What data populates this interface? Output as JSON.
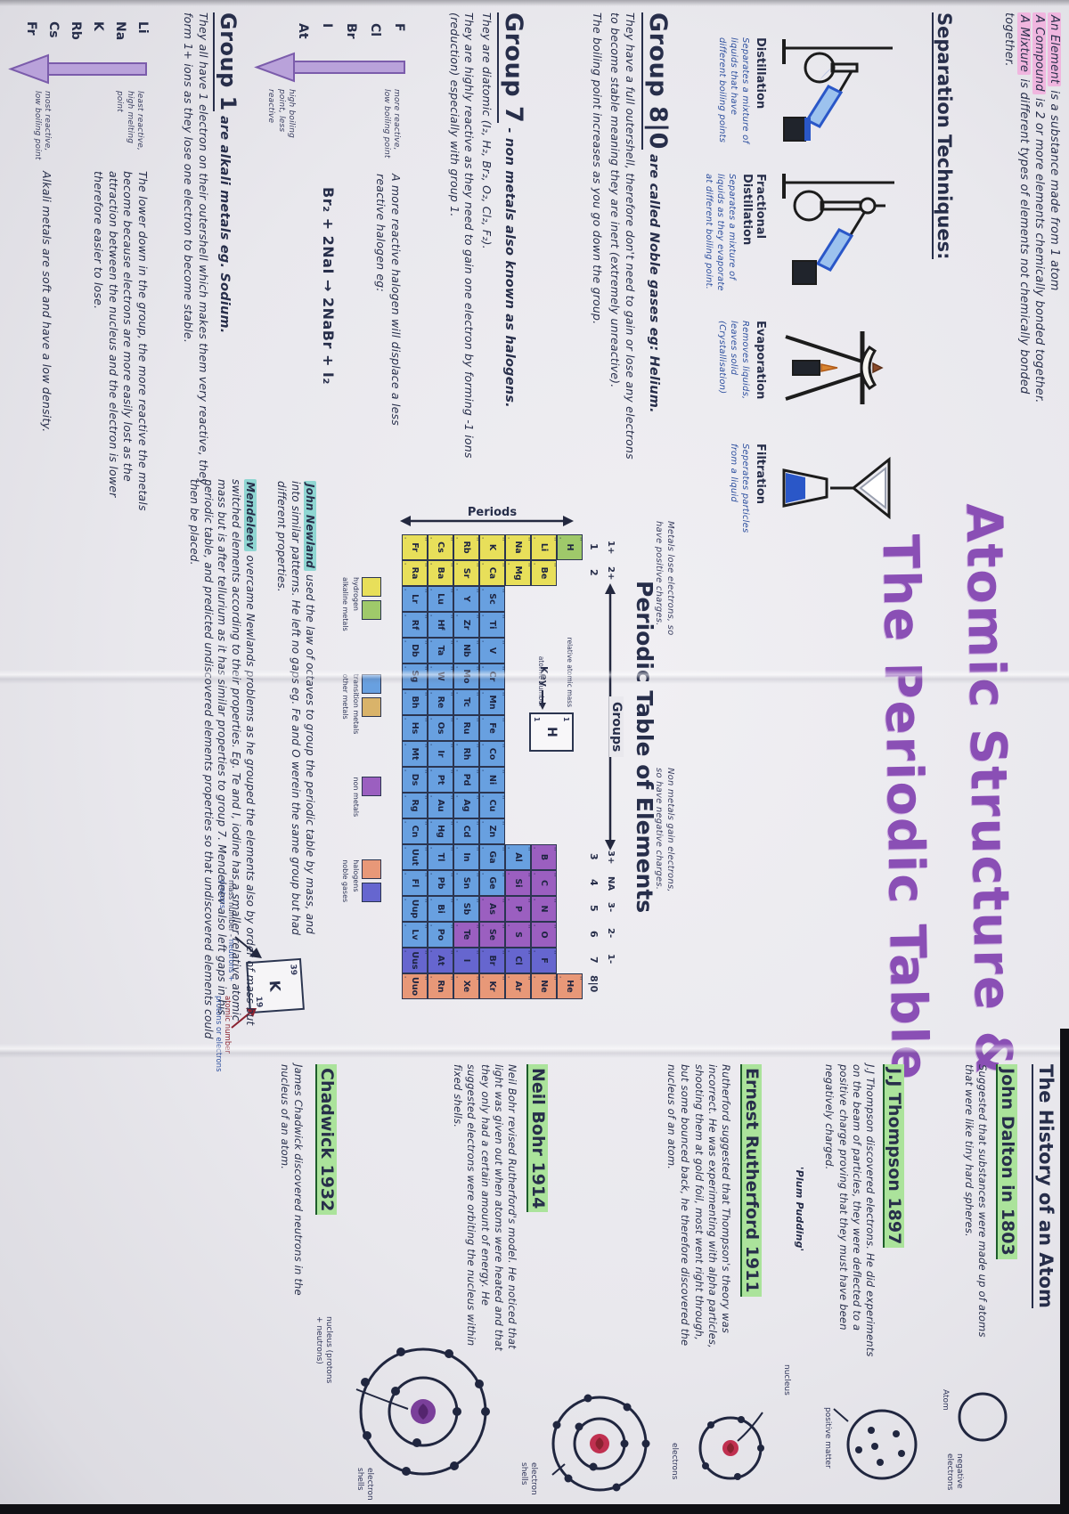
{
  "defs": [
    {
      "hl": "An Element",
      "rest": " is a substance made from 1 atom"
    },
    {
      "hl": "A Compound",
      "rest": " is 2 or more elements chemically bonded together."
    },
    {
      "hl": "A Mixture",
      "rest": " is different types of elements not chemically bonded together."
    }
  ],
  "separation": {
    "heading": "Separation Techniques:",
    "techniques": [
      {
        "name": "Distillation",
        "desc": "Separates a mixture of liquids that have different boiling points"
      },
      {
        "name": "Fractional Distillation",
        "desc": "Separates a mixture of liquids as they evaporate at different boiling point."
      },
      {
        "name": "Evaporation",
        "desc": "Removes liquids, leaves solid (Crystallisation)"
      },
      {
        "name": "Filtration",
        "desc": "Seperates particles from a liquid"
      }
    ]
  },
  "group8": {
    "heading_big": "Group 8|0",
    "heading_rest": "are called Noble gases eg: Helium.",
    "p1": "They have a full outershell, therefore don't need to gain or lose any electrons to become stable meaning they are inert (extremely unreactive).",
    "p2": "The boiling point increases as you go down the group."
  },
  "group7": {
    "heading_big": "Group 7",
    "heading_rest": "- non metals also known as halogens.",
    "p1": "They are diatomic (I₂, H₂, Br₂, O₂, Cl₂, F₂).",
    "p2": "They are highly reactive as they need to gain one electron by forming -1 ions (reduction) especially with group 1.",
    "displacement": "A more reactive halogen will displace a less reactive halogen eg:",
    "equation": "Br₂ + 2NaI → 2NaBr + I₂",
    "elements": [
      "F",
      "Cl",
      "Br",
      "I",
      "At"
    ],
    "arrow_top": "more reactive, low boiling point",
    "arrow_bottom": "high boiling point, less reactive"
  },
  "group1": {
    "heading_big": "Group 1",
    "heading_rest": "are alkali metals eg. Sodium.",
    "p1": "They all have 1 electron on their outershell which makes them very reactive, they form 1+ ions as they lose one electron to become stable.",
    "p2": "The lower down in the group, the more reactive the metals become because electrons are more easily lost as the attraction between the nucleus and the electron is lower therefore easier to lose.",
    "p3": "Alkali metals are soft and have a low density.",
    "elements": [
      "Li",
      "Na",
      "K",
      "Rb",
      "Cs",
      "Fr"
    ],
    "arrow_top": "least reactive, high melting point",
    "arrow_bottom": "most reactive, low boiling point"
  },
  "main_title": {
    "line1": "Atomic Structure &",
    "line2": "The Periodic Table"
  },
  "ptable": {
    "title": "Periodic Table of Elements",
    "metals_note": "Metals lose electrons, so have positive charges.",
    "nonmetals_note": "Non metals gain electrons, so have negative charges.",
    "periods_label": "Periods",
    "groups_label": "Groups",
    "numbers": [
      {
        "col": 1,
        "t": "1"
      },
      {
        "col": 2,
        "t": "2"
      },
      {
        "col": 13,
        "t": "3"
      },
      {
        "col": 14,
        "t": "4"
      },
      {
        "col": 15,
        "t": "5"
      },
      {
        "col": 16,
        "t": "6"
      },
      {
        "col": 17,
        "t": "7"
      },
      {
        "col": 18,
        "t": "8|0"
      }
    ],
    "charges": [
      {
        "col": 1,
        "t": "1+"
      },
      {
        "col": 2,
        "t": "2+"
      },
      {
        "col": 13,
        "t": "3+"
      },
      {
        "col": 14,
        "t": "NA"
      },
      {
        "col": 15,
        "t": "3-"
      },
      {
        "col": 16,
        "t": "2-"
      },
      {
        "col": 17,
        "t": "1-"
      }
    ],
    "key": {
      "label": "Key",
      "symbol": "H",
      "top_number": "1",
      "bottom_number": "1",
      "left_top": "relative atomic mass",
      "left_bottom": "atomic number"
    },
    "example": {
      "mass": "39",
      "symbol": "K",
      "atomic": "19",
      "mass_label": "mass number",
      "mass_expl": "neutrons + protons",
      "atomic_label": "atomic number",
      "atomic_expl": "protons or electrons"
    },
    "legend": [
      {
        "swatches": [
          "#e8df5a",
          "#9fc96a"
        ],
        "labels": [
          "hydrogen",
          "alkaline metals"
        ]
      },
      {
        "swatches": [
          "#68a0e0",
          "#d9b36a"
        ],
        "labels": [
          "transition metals",
          "other metals"
        ]
      },
      {
        "swatches": [
          "#9b5fc0"
        ],
        "labels": [
          "non metals"
        ]
      },
      {
        "swatches": [
          "#e89878",
          "#6666cf"
        ],
        "labels": [
          "halogens",
          "noble gases"
        ]
      }
    ],
    "grid": [
      [
        [
          "H",
          "g"
        ],
        null,
        null,
        null,
        null,
        null,
        null,
        null,
        null,
        null,
        null,
        null,
        null,
        null,
        null,
        null,
        null,
        [
          "He",
          "o"
        ]
      ],
      [
        [
          "Li",
          "y"
        ],
        [
          "Be",
          "y"
        ],
        null,
        null,
        null,
        null,
        null,
        null,
        null,
        null,
        null,
        null,
        [
          "B",
          "p"
        ],
        [
          "C",
          "p"
        ],
        [
          "N",
          "p"
        ],
        [
          "O",
          "p"
        ],
        [
          "F",
          "i"
        ],
        [
          "Ne",
          "o"
        ]
      ],
      [
        [
          "Na",
          "y"
        ],
        [
          "Mg",
          "y"
        ],
        null,
        null,
        null,
        null,
        null,
        null,
        null,
        null,
        null,
        null,
        [
          "Al",
          "b"
        ],
        [
          "Si",
          "p"
        ],
        [
          "P",
          "p"
        ],
        [
          "S",
          "p"
        ],
        [
          "Cl",
          "i"
        ],
        [
          "Ar",
          "o"
        ]
      ],
      [
        [
          "K",
          "y"
        ],
        [
          "Ca",
          "y"
        ],
        [
          "Sc",
          "b"
        ],
        [
          "Ti",
          "b"
        ],
        [
          "V",
          "b"
        ],
        [
          "Cr",
          "b"
        ],
        [
          "Mn",
          "b"
        ],
        [
          "Fe",
          "b"
        ],
        [
          "Co",
          "b"
        ],
        [
          "Ni",
          "b"
        ],
        [
          "Cu",
          "b"
        ],
        [
          "Zn",
          "b"
        ],
        [
          "Ga",
          "b"
        ],
        [
          "Ge",
          "b"
        ],
        [
          "As",
          "p"
        ],
        [
          "Se",
          "p"
        ],
        [
          "Br",
          "i"
        ],
        [
          "Kr",
          "o"
        ]
      ],
      [
        [
          "Rb",
          "y"
        ],
        [
          "Sr",
          "y"
        ],
        [
          "Y",
          "b"
        ],
        [
          "Zr",
          "b"
        ],
        [
          "Nb",
          "b"
        ],
        [
          "Mo",
          "b"
        ],
        [
          "Tc",
          "b"
        ],
        [
          "Ru",
          "b"
        ],
        [
          "Rh",
          "b"
        ],
        [
          "Pd",
          "b"
        ],
        [
          "Ag",
          "b"
        ],
        [
          "Cd",
          "b"
        ],
        [
          "In",
          "b"
        ],
        [
          "Sn",
          "b"
        ],
        [
          "Sb",
          "b"
        ],
        [
          "Te",
          "p"
        ],
        [
          "I",
          "i"
        ],
        [
          "Xe",
          "o"
        ]
      ],
      [
        [
          "Cs",
          "y"
        ],
        [
          "Ba",
          "y"
        ],
        [
          "Lu",
          "b"
        ],
        [
          "Hf",
          "b"
        ],
        [
          "Ta",
          "b"
        ],
        [
          "W",
          "b"
        ],
        [
          "Re",
          "b"
        ],
        [
          "Os",
          "b"
        ],
        [
          "Ir",
          "b"
        ],
        [
          "Pt",
          "b"
        ],
        [
          "Au",
          "b"
        ],
        [
          "Hg",
          "b"
        ],
        [
          "Tl",
          "b"
        ],
        [
          "Pb",
          "b"
        ],
        [
          "Bi",
          "b"
        ],
        [
          "Po",
          "b"
        ],
        [
          "At",
          "i"
        ],
        [
          "Rn",
          "o"
        ]
      ],
      [
        [
          "Fr",
          "y"
        ],
        [
          "Ra",
          "y"
        ],
        [
          "Lr",
          "b"
        ],
        [
          "Rf",
          "b"
        ],
        [
          "Db",
          "b"
        ],
        [
          "Sg",
          "b"
        ],
        [
          "Bh",
          "b"
        ],
        [
          "Hs",
          "b"
        ],
        [
          "Mt",
          "b"
        ],
        [
          "Ds",
          "b"
        ],
        [
          "Rg",
          "b"
        ],
        [
          "Cn",
          "b"
        ],
        [
          "Uut",
          "b"
        ],
        [
          "Fl",
          "b"
        ],
        [
          "Uup",
          "b"
        ],
        [
          "Lv",
          "b"
        ],
        [
          "Uus",
          "i"
        ],
        [
          "Uuo",
          "o"
        ]
      ]
    ]
  },
  "octaves": {
    "newlands_hl": "John Newland",
    "newlands_rest": " used the law of octaves to group the periodic table by mass, and into similar patterns. He left no gaps eg. Fe and O werein the same group but had different properties.",
    "mendeleev_hl": "Mendeleev",
    "mendeleev_rest": " overcame Newlands problems as he grouped the elements also by order of mass but switched elements according to their properties. Eg. Te and I, iodine has a smaller relative atomic mass but is after tellurium as it has similar properties to group 7. Mendeleev also left gaps in his periodic table, and predicted undiscovered elements properties so that undiscovered elements could then be placed."
  },
  "history": {
    "heading": "The History of an Atom",
    "entries": [
      {
        "name": "John Dalton in 1803",
        "text": "Suggested that substances were made up of atoms that were like tiny hard spheres.",
        "labels": {
          "figure": "Atom"
        }
      },
      {
        "name": "J.J Thompson 1897",
        "text": "J.J Thompson discovered electrons. He did experiments on the beam of particles, they were deflected to a positive charge proving that they must have been negatively charged.",
        "labels": {
          "inline": "'Plum Pudding'",
          "top": "negative electrons",
          "bottom": "positive matter"
        }
      },
      {
        "name": "Ernest Rutherford 1911",
        "text": "Rutherford suggested that Thompson's theory was incorrect. He was experimenting with alpha particles, shooting them at gold foil, most went right through, but some bounced back, he therefore discovered the nucleus of an atom.",
        "labels": {
          "nucleus": "nucleus",
          "electrons": "electrons"
        }
      },
      {
        "name": "Neil Bohr 1914",
        "text": "Neil Bohr revised Rutherford's model. He noticed that light was given out when atoms were heated and that they only had a certain amount of energy. He suggested electrons were orbiting the nucleus within fixed shells.",
        "labels": {
          "shells": "electron shells"
        }
      },
      {
        "name": "Chadwick 1932",
        "text": "James Chadwick discovered neutrons in the nucleus of an atom.",
        "labels": {
          "nucleus": "nucleus (protons + neutrons)",
          "shells": "electron shells"
        }
      }
    ]
  },
  "colors": {
    "paper": "#e9e8ed",
    "ink": "#272e4a",
    "blue_ink": "#2d4f9e",
    "title_purple": "#8a4fb5",
    "highlight_pink": "#f0b6df",
    "highlight_green": "#abe39b",
    "highlight_teal": "#8fd6d2",
    "arrow_purple": "#b9a2da",
    "cell_yellow": "#e8df5a",
    "cell_green": "#9fc96a",
    "cell_blue": "#68a0e0",
    "cell_purple": "#9b5fc0",
    "cell_indigo": "#6666cf",
    "cell_salmon": "#e89878"
  }
}
